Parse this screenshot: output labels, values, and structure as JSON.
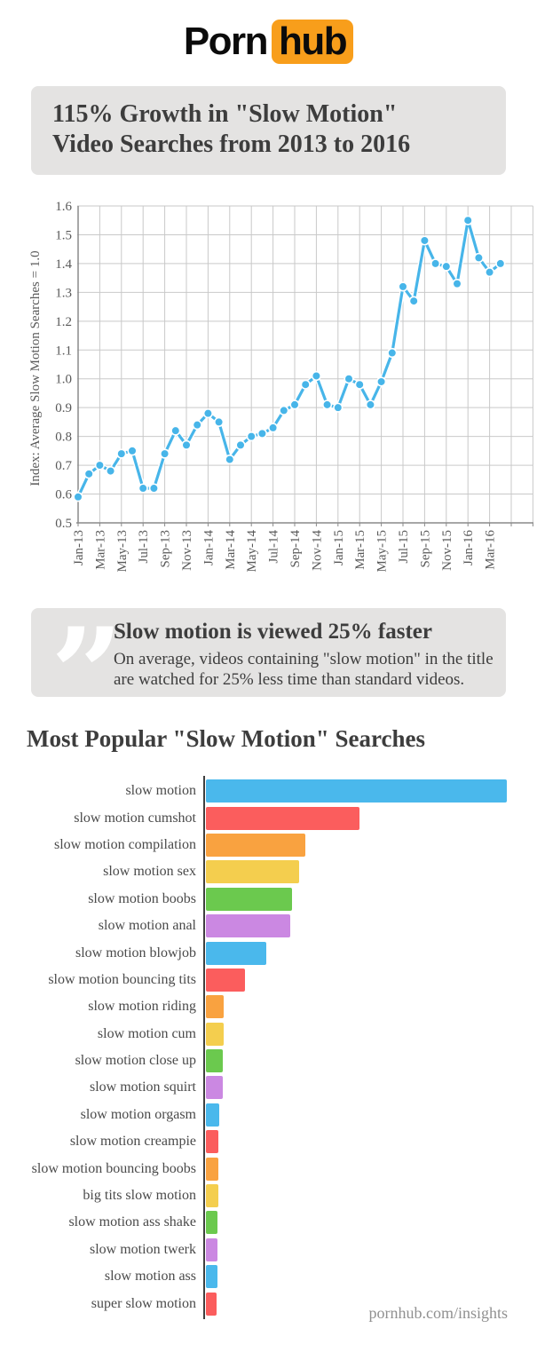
{
  "logo": {
    "part1": "Porn",
    "part2": "hub",
    "badge_color": "#f89e1b",
    "text_color": "#0b0b0b"
  },
  "header": {
    "title": "115% Growth in \"Slow Motion\"\nVideo Searches from 2013 to 2016"
  },
  "quote": {
    "mark": "”",
    "heading": "Slow motion is viewed 25% faster",
    "body": "On average, videos containing \"slow motion\" in the title\nare watched for 25% less time than standard videos."
  },
  "bar_section": {
    "title": "Most Popular \"Slow Motion\" Searches"
  },
  "footer": {
    "text": "pornhub.com/insights"
  },
  "colors": {
    "panel_grey": "#e4e3e2",
    "line_blue": "#47b5e9",
    "grid": "#c9c9c9",
    "axis": "#8a8a8a",
    "tick_text": "#595959",
    "palette": [
      "#4ab8ec",
      "#fb5d5d",
      "#f9a240",
      "#f4ce4e",
      "#6bc94e",
      "#cb88e2"
    ]
  },
  "chart_data": [
    {
      "type": "line",
      "title": "115% Growth in \"Slow Motion\" Video Searches from 2013 to 2016",
      "ylabel": "Index: Average Slow Motion Searches = 1.0",
      "ylim": [
        0.5,
        1.6
      ],
      "y_tick_step": 0.1,
      "grid": true,
      "x_tick_every": 2,
      "x": [
        "Jan-13",
        "Feb-13",
        "Mar-13",
        "Apr-13",
        "May-13",
        "Jun-13",
        "Jul-13",
        "Aug-13",
        "Sep-13",
        "Oct-13",
        "Nov-13",
        "Dec-13",
        "Jan-14",
        "Feb-14",
        "Mar-14",
        "Apr-14",
        "May-14",
        "Jun-14",
        "Jul-14",
        "Aug-14",
        "Sep-14",
        "Oct-14",
        "Nov-14",
        "Dec-14",
        "Jan-15",
        "Feb-15",
        "Mar-15",
        "Apr-15",
        "May-15",
        "Jun-15",
        "Jul-15",
        "Aug-15",
        "Sep-15",
        "Oct-15",
        "Nov-15",
        "Dec-15",
        "Jan-16",
        "Feb-16",
        "Mar-16",
        "Apr-16"
      ],
      "values": [
        0.59,
        0.67,
        0.7,
        0.68,
        0.74,
        0.75,
        0.62,
        0.62,
        0.74,
        0.82,
        0.77,
        0.84,
        0.88,
        0.85,
        0.72,
        0.77,
        0.8,
        0.81,
        0.83,
        0.89,
        0.91,
        0.98,
        1.01,
        0.91,
        0.9,
        1.0,
        0.98,
        0.91,
        0.99,
        1.09,
        1.32,
        1.27,
        1.48,
        1.4,
        1.39,
        1.33,
        1.55,
        1.42,
        1.37,
        1.4
      ]
    },
    {
      "type": "bar",
      "orientation": "horizontal",
      "title": "Most Popular \"Slow Motion\" Searches",
      "categories": [
        "slow motion",
        "slow motion cumshot",
        "slow motion compilation",
        "slow motion sex",
        "slow motion boobs",
        "slow motion anal",
        "slow motion blowjob",
        "slow motion bouncing tits",
        "slow motion riding",
        "slow motion cum",
        "slow motion close up",
        "slow motion squirt",
        "slow motion orgasm",
        "slow motion creampie",
        "slow motion bouncing boobs",
        "big tits slow motion",
        "slow motion ass shake",
        "slow motion twerk",
        "slow motion ass",
        "super slow motion"
      ],
      "values": [
        1.0,
        0.51,
        0.33,
        0.31,
        0.285,
        0.28,
        0.2,
        0.13,
        0.059,
        0.058,
        0.057,
        0.056,
        0.043,
        0.042,
        0.041,
        0.04,
        0.039,
        0.038,
        0.037,
        0.036
      ],
      "value_note": "relative search volume, top search = 1.0"
    }
  ]
}
